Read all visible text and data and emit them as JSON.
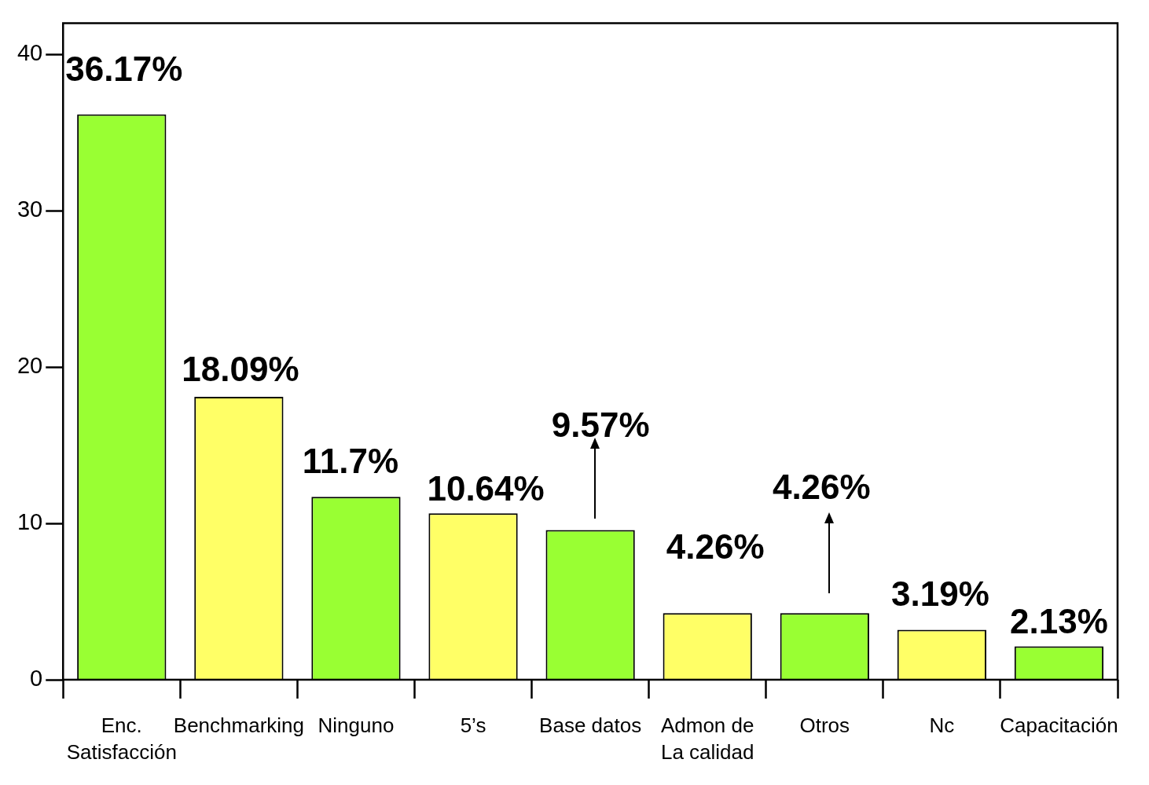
{
  "chart_data": {
    "type": "bar",
    "categories": [
      "Enc. Satisfacción",
      "Benchmarking",
      "Ninguno",
      "5’s",
      "Base datos",
      "Admon de La calidad",
      "Otros",
      "Nc",
      "Capacitación"
    ],
    "values": [
      36.17,
      18.09,
      11.7,
      10.64,
      9.57,
      4.26,
      4.26,
      3.19,
      2.13
    ],
    "colors": [
      "#99ff33",
      "#ffff66",
      "#99ff33",
      "#ffff66",
      "#99ff33",
      "#ffff66",
      "#99ff33",
      "#ffff66",
      "#99ff33"
    ],
    "value_labels": [
      "36.17%",
      "18.09%",
      "11.7%",
      "10.64%",
      "9.57%",
      "4.26%",
      "4.26%",
      "3.19%",
      "2.13%"
    ],
    "ylim": [
      0,
      42
    ],
    "yticks": [
      0,
      10,
      20,
      30,
      40
    ],
    "grid": false,
    "legend": false
  }
}
